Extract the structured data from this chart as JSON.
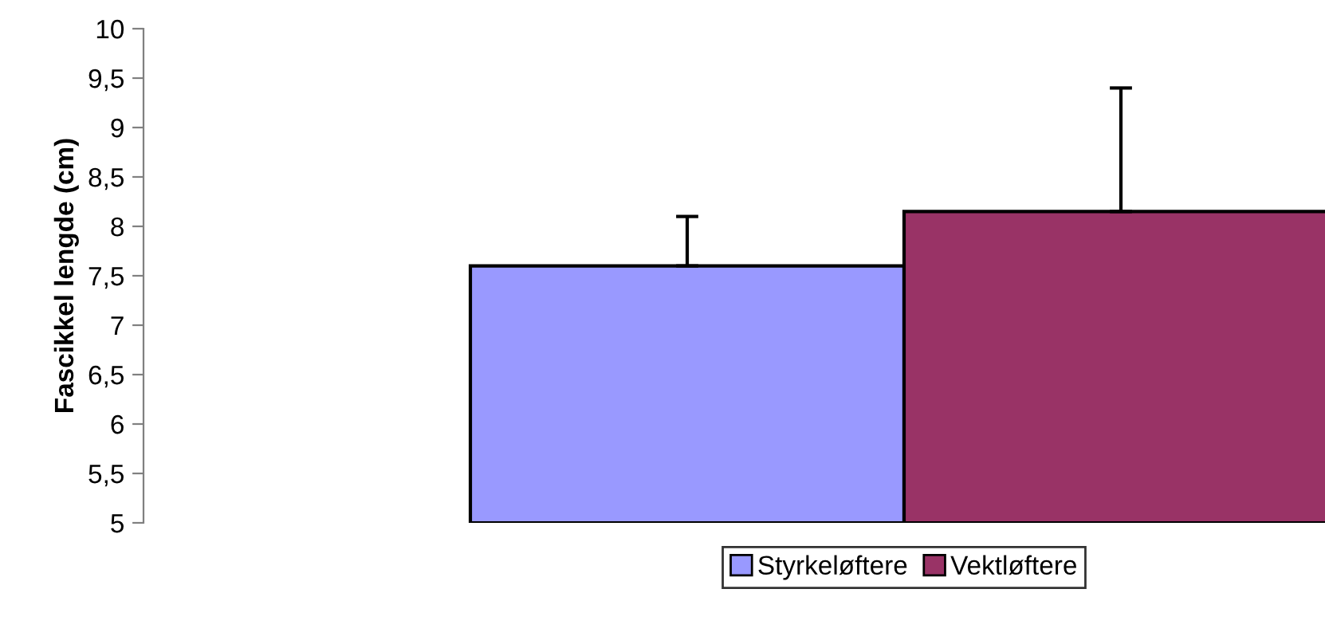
{
  "chart_data": {
    "type": "bar",
    "ylabel": "Fascikkel lengde (cm)",
    "categories": [
      null
    ],
    "series": [
      {
        "name": "Styrkeløftere",
        "color": "#9999ff",
        "values": [
          7.6
        ],
        "errors": [
          0.5
        ]
      },
      {
        "name": "Vektløftere",
        "color": "#993366",
        "values": [
          8.15
        ],
        "errors": [
          1.25
        ]
      }
    ],
    "ylim": [
      5,
      10
    ],
    "yticks": [
      5,
      {
        "value": 5.5,
        "label": "5,5"
      },
      6,
      {
        "value": 6.5,
        "label": "6,5"
      },
      7,
      {
        "value": 7.5,
        "label": "7,5"
      },
      8,
      {
        "value": 8.5,
        "label": "8,5"
      },
      9,
      {
        "value": 9.5,
        "label": "9,5"
      },
      10
    ],
    "grid": false,
    "legend": "bottom"
  }
}
